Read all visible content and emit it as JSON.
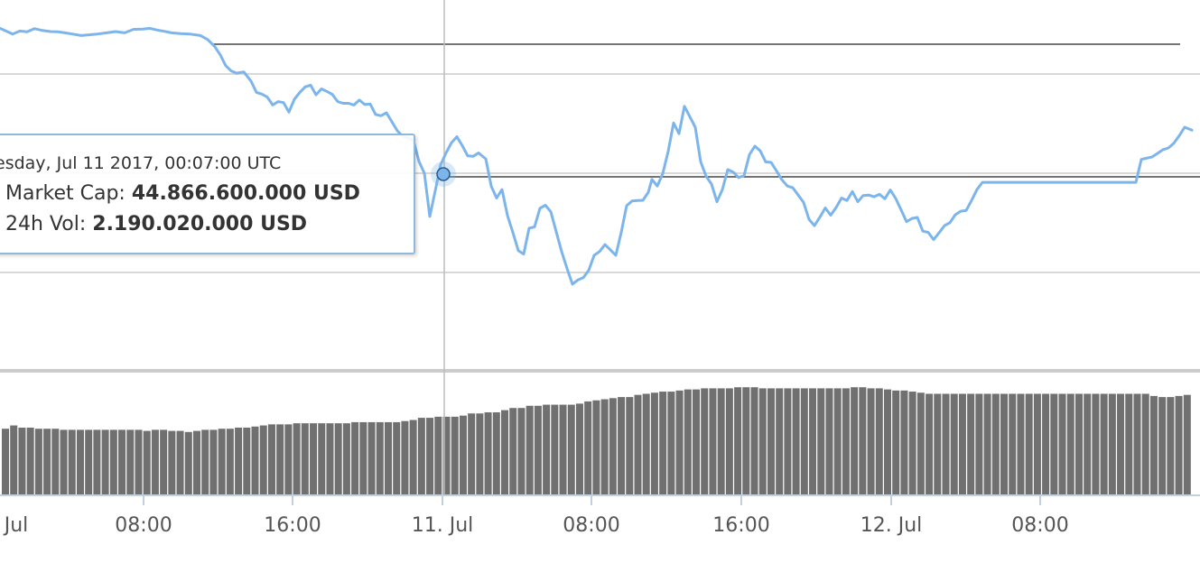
{
  "chart_data": [
    {
      "type": "line",
      "series": [
        {
          "color": "#7cb5ec",
          "x": [
            0,
            1,
            2,
            3,
            4,
            5,
            6,
            7,
            8,
            9,
            10,
            11,
            12,
            13,
            14,
            15,
            16,
            17,
            18,
            19,
            20,
            21,
            22,
            23,
            24,
            25,
            26,
            27,
            28,
            29,
            30,
            31,
            32,
            33,
            34,
            35,
            36,
            37,
            38,
            39,
            40,
            41,
            42,
            43,
            44,
            45,
            46,
            47,
            48,
            49,
            50,
            51,
            52,
            53,
            54,
            55,
            56,
            57,
            58,
            59,
            60,
            61,
            62,
            63,
            64,
            65,
            66,
            67,
            68,
            69,
            70,
            71,
            72,
            73,
            74,
            75,
            76,
            77,
            78,
            79,
            80,
            81,
            82,
            83,
            84,
            85,
            86,
            87,
            88,
            89,
            90,
            91,
            92,
            93,
            94,
            95,
            96,
            97,
            98,
            99,
            100,
            101,
            102,
            103,
            104,
            105,
            106,
            107,
            108,
            109,
            110,
            111,
            112,
            113,
            114,
            115,
            116,
            117,
            118,
            119,
            120,
            121,
            122,
            123,
            124,
            125,
            126,
            127,
            128,
            129,
            130,
            131,
            132,
            133,
            134,
            135,
            136,
            137,
            138,
            139,
            140,
            141,
            142,
            143,
            144,
            145,
            146,
            147,
            148,
            149,
            150,
            151,
            152,
            153,
            154,
            155,
            156,
            157,
            158,
            159
          ],
          "values": [
            0,
            0,
            0,
            0,
            0,
            0,
            0,
            0,
            0,
            0,
            0,
            0,
            0,
            0,
            0,
            0,
            0,
            0,
            0,
            0,
            0,
            0,
            0,
            0,
            0,
            0,
            0,
            0,
            0,
            0,
            0,
            0,
            0,
            0,
            0,
            0,
            0,
            0,
            0,
            0,
            0,
            0,
            0,
            0,
            0,
            0,
            0,
            0,
            0,
            0,
            0,
            0,
            0,
            0,
            0,
            0,
            0,
            0,
            0,
            0,
            0,
            0,
            0,
            0,
            0,
            0,
            0,
            0,
            0,
            0,
            0,
            0,
            0,
            0,
            0,
            0,
            0,
            0,
            0,
            0,
            0,
            0,
            0,
            0,
            0,
            0,
            0,
            0,
            0,
            0,
            0,
            0,
            0,
            0,
            0,
            0,
            0,
            0,
            0,
            0,
            0,
            0,
            0,
            0,
            0,
            0,
            0,
            0,
            0,
            0,
            0,
            0,
            0,
            0,
            0,
            0,
            0,
            0,
            0,
            0,
            0,
            0,
            0,
            0,
            0,
            0,
            0,
            0,
            0,
            0,
            0,
            0,
            0,
            0,
            0,
            0,
            0,
            0,
            0,
            0,
            0,
            0,
            0,
            0,
            0,
            0,
            0,
            0,
            0,
            0,
            0,
            0,
            0,
            0,
            0,
            0,
            0,
            0,
            0,
            0
          ]
        }
      ],
      "line_points": [
        [
          0,
          60.5
        ],
        [
          8,
          61.8
        ],
        [
          14,
          62.8
        ],
        [
          22,
          61.6
        ],
        [
          30,
          61.9
        ],
        [
          38,
          60.6
        ],
        [
          46,
          61.3
        ],
        [
          56,
          61.8
        ],
        [
          64,
          61.9
        ],
        [
          72,
          62.3
        ],
        [
          80,
          62.8
        ],
        [
          90,
          63.4
        ],
        [
          98,
          63.1
        ],
        [
          108,
          62.8
        ],
        [
          118,
          62.3
        ],
        [
          128,
          61.8
        ],
        [
          138,
          62.3
        ],
        [
          148,
          60.9
        ],
        [
          158,
          60.8
        ],
        [
          166,
          60.5
        ],
        [
          174,
          61.2
        ],
        [
          182,
          61.7
        ],
        [
          190,
          62.3
        ],
        [
          200,
          62.6
        ],
        [
          210,
          62.8
        ],
        [
          222,
          63.4
        ],
        [
          230,
          65.0
        ],
        [
          238,
          67.9
        ],
        [
          244,
          71.2
        ],
        [
          250,
          75.5
        ],
        [
          256,
          77.6
        ],
        [
          262,
          78.5
        ],
        [
          270,
          78.0
        ],
        [
          278,
          81.7
        ],
        [
          284,
          86.2
        ],
        [
          290,
          86.9
        ],
        [
          296,
          88.1
        ],
        [
          302,
          91.3
        ],
        [
          308,
          89.9
        ],
        [
          314,
          90.3
        ],
        [
          320,
          94.1
        ],
        [
          326,
          89.0
        ],
        [
          332,
          86.2
        ],
        [
          338,
          84.0
        ],
        [
          344,
          83.3
        ],
        [
          350,
          87.2
        ],
        [
          356,
          84.8
        ],
        [
          362,
          85.8
        ],
        [
          368,
          87.0
        ],
        [
          374,
          89.9
        ],
        [
          380,
          90.6
        ],
        [
          386,
          90.6
        ],
        [
          392,
          91.3
        ],
        [
          398,
          89.3
        ],
        [
          404,
          91.1
        ],
        [
          410,
          90.9
        ],
        [
          416,
          95.1
        ],
        [
          422,
          95.6
        ],
        [
          428,
          94.4
        ],
        [
          434,
          98.0
        ],
        [
          440,
          101.6
        ],
        [
          446,
          103.8
        ],
        [
          452,
          104.4
        ],
        [
          458,
          105.7
        ],
        [
          464,
          113.9
        ],
        [
          470,
          118.7
        ],
        [
          476,
          136.0
        ],
        [
          482,
          125.7
        ],
        [
          488,
          115.3
        ],
        [
          494,
          110.5
        ],
        [
          500,
          106.4
        ],
        [
          506,
          104.0
        ],
        [
          512,
          107.6
        ],
        [
          518,
          111.7
        ],
        [
          524,
          111.9
        ],
        [
          530,
          110.5
        ],
        [
          538,
          112.9
        ],
        [
          544,
          123.8
        ],
        [
          550,
          128.6
        ],
        [
          556,
          125.2
        ],
        [
          562,
          135.6
        ],
        [
          568,
          142.4
        ],
        [
          574,
          149.7
        ],
        [
          580,
          151.1
        ],
        [
          586,
          140.7
        ],
        [
          592,
          140.2
        ],
        [
          598,
          132.7
        ],
        [
          604,
          131.5
        ],
        [
          610,
          134.1
        ],
        [
          616,
          142.1
        ],
        [
          622,
          150.1
        ],
        [
          628,
          156.9
        ],
        [
          634,
          163.2
        ],
        [
          640,
          161.5
        ],
        [
          646,
          160.6
        ],
        [
          652,
          157.6
        ],
        [
          658,
          151.6
        ],
        [
          664,
          150.1
        ],
        [
          670,
          147.3
        ],
        [
          676,
          149.4
        ],
        [
          682,
          151.6
        ],
        [
          688,
          142.4
        ],
        [
          694,
          131.7
        ],
        [
          700,
          129.8
        ],
        [
          706,
          129.6
        ],
        [
          712,
          129.5
        ],
        [
          718,
          126.3
        ],
        [
          722,
          121.1
        ],
        [
          728,
          123.8
        ],
        [
          734,
          118.8
        ],
        [
          740,
          109.9
        ],
        [
          746,
          98.5
        ],
        [
          752,
          102.8
        ],
        [
          758,
          91.8
        ],
        [
          764,
          96.0
        ],
        [
          770,
          100.2
        ],
        [
          776,
          114.1
        ],
        [
          782,
          119.9
        ],
        [
          788,
          123.0
        ],
        [
          794,
          130.1
        ],
        [
          800,
          125.2
        ],
        [
          806,
          117.2
        ],
        [
          812,
          118.2
        ],
        [
          818,
          120.4
        ],
        [
          824,
          119.6
        ],
        [
          830,
          111.2
        ],
        [
          836,
          107.8
        ],
        [
          842,
          109.7
        ],
        [
          848,
          114.1
        ],
        [
          854,
          114.3
        ],
        [
          860,
          117.7
        ],
        [
          866,
          121.3
        ],
        [
          872,
          123.8
        ],
        [
          878,
          124.5
        ],
        [
          884,
          127.4
        ],
        [
          890,
          130.4
        ],
        [
          896,
          137.2
        ],
        [
          902,
          139.7
        ],
        [
          908,
          136.3
        ],
        [
          914,
          132.6
        ],
        [
          920,
          135.5
        ],
        [
          926,
          132.4
        ],
        [
          932,
          128.6
        ],
        [
          938,
          129.6
        ],
        [
          944,
          126.0
        ],
        [
          950,
          130.1
        ],
        [
          956,
          127.6
        ],
        [
          962,
          127.4
        ],
        [
          968,
          128.1
        ],
        [
          974,
          127.1
        ],
        [
          980,
          128.9
        ],
        [
          986,
          125.4
        ],
        [
          992,
          128.8
        ],
        [
          998,
          133.4
        ],
        [
          1004,
          138.1
        ],
        [
          1010,
          136.8
        ],
        [
          1016,
          136.4
        ],
        [
          1022,
          141.9
        ],
        [
          1028,
          142.4
        ],
        [
          1034,
          145.3
        ],
        [
          1040,
          142.6
        ],
        [
          1046,
          139.7
        ],
        [
          1052,
          138.5
        ],
        [
          1058,
          135.3
        ],
        [
          1064,
          133.9
        ],
        [
          1070,
          133.6
        ],
        [
          1076,
          129.6
        ],
        [
          1082,
          125.2
        ],
        [
          1088,
          122.3
        ],
        [
          1100,
          122.3
        ],
        [
          1120,
          122.3
        ],
        [
          1140,
          122.3
        ],
        [
          1160,
          122.3
        ],
        [
          1180,
          122.3
        ],
        [
          1200,
          122.3
        ],
        [
          1220,
          122.3
        ],
        [
          1240,
          122.3
        ],
        [
          1258,
          122.3
        ],
        [
          1264,
          113.1
        ],
        [
          1270,
          112.6
        ],
        [
          1276,
          112.1
        ],
        [
          1282,
          110.7
        ],
        [
          1288,
          109.2
        ],
        [
          1294,
          108.5
        ],
        [
          1300,
          106.6
        ],
        [
          1306,
          103.6
        ],
        [
          1312,
          100.2
        ],
        [
          1320,
          101.4
        ]
      ],
      "bars": [
        161,
        164,
        162,
        162,
        161,
        161,
        161,
        160,
        160,
        160,
        160,
        160,
        160,
        160,
        160,
        160,
        160,
        159,
        160,
        160,
        159,
        159,
        158,
        159,
        160,
        160,
        161,
        161,
        162,
        162,
        163,
        164,
        165,
        165,
        165,
        166,
        166,
        166,
        166,
        166,
        166,
        166,
        167,
        167,
        167,
        167,
        167,
        167,
        168,
        169,
        171,
        171,
        172,
        172,
        172,
        173,
        175,
        175,
        176,
        176,
        178,
        180,
        180,
        182,
        182,
        183,
        183,
        183,
        183,
        184,
        186,
        187,
        188,
        189,
        190,
        190,
        192,
        193,
        194,
        195,
        195,
        196,
        197,
        197,
        198,
        198,
        198,
        198,
        199,
        199,
        199,
        198,
        198,
        198,
        198,
        198,
        198,
        198,
        198,
        198,
        198,
        198,
        199,
        199,
        198,
        198,
        197,
        196,
        196,
        195,
        194,
        193,
        193,
        193,
        193,
        193,
        193,
        193,
        193,
        193,
        193,
        193,
        193,
        193,
        193,
        193,
        193,
        193,
        193,
        193,
        193,
        193,
        193,
        193,
        193,
        193,
        193,
        193,
        191,
        190,
        190,
        191,
        192
      ],
      "x_tick_labels": [
        "Jul",
        "08:00",
        "16:00",
        "11. Jul",
        "08:00",
        "16:00",
        "12. Jul",
        "08:00"
      ],
      "tooltip": {
        "date": "esday, Jul 11 2017, 00:07:00 UTC",
        "market_cap_label": "Market Cap:",
        "market_cap_value": "44.866.600.000 USD",
        "volume_label": "24h Vol:",
        "volume_value": "2.190.020.000 USD"
      }
    }
  ]
}
